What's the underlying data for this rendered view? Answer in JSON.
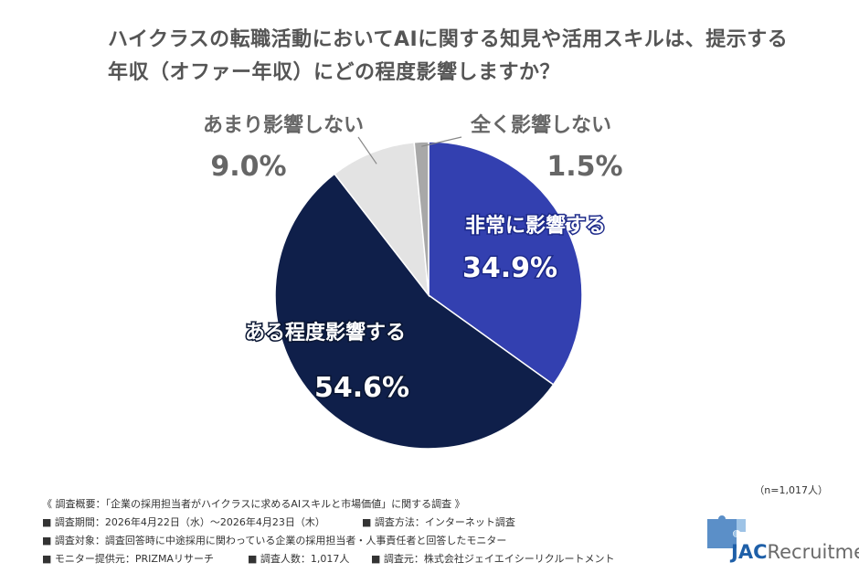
{
  "title": "ハイクラスの転職活動においてAIに関する知見や活用スキルは、提示する年収（オファー年収）にどの程度影響しますか？",
  "chart_data": {
    "type": "pie",
    "title": "ハイクラスの転職活動においてAIに関する知見や活用スキルは、提示する年収（オファー年収）にどの程度影響しますか？",
    "unit": "%",
    "slices": [
      {
        "label": "非常に影響する",
        "value": 34.9,
        "display": "34.9%",
        "color": "#3340b0"
      },
      {
        "label": "ある程度影響する",
        "value": 54.6,
        "display": "54.6%",
        "color": "#0f1f4a"
      },
      {
        "label": "あまり影響しない",
        "value": 9.0,
        "display": "9.0%",
        "color": "#e3e3e3"
      },
      {
        "label": "全く影響しない",
        "value": 1.5,
        "display": "1.5%",
        "color": "#a8a8a8"
      }
    ]
  },
  "sample_size": "（n=1,017人）",
  "notes": {
    "overview": "《 調査概要：「企業の採用担当者がハイクラスに求めるAIスキルと市場価値」に関する調査 》",
    "period": "■ 調査期間：2026年4月22日（水）〜2026年4月23日（木）",
    "method": "■ 調査方法：インターネット調査",
    "target": "■ 調査対象：調査回答時に中途採用に関わっている企業の採用担当者・人事責任者と回答したモニター",
    "provider": "■ モニター提供元：PRIZMAリサーチ",
    "count": "■ 調査人数：1,017人",
    "source": "■ 調査元：株式会社ジェイエイシーリクルートメント"
  },
  "logo": {
    "brand": "JAC",
    "suffix": "Recruitment"
  }
}
